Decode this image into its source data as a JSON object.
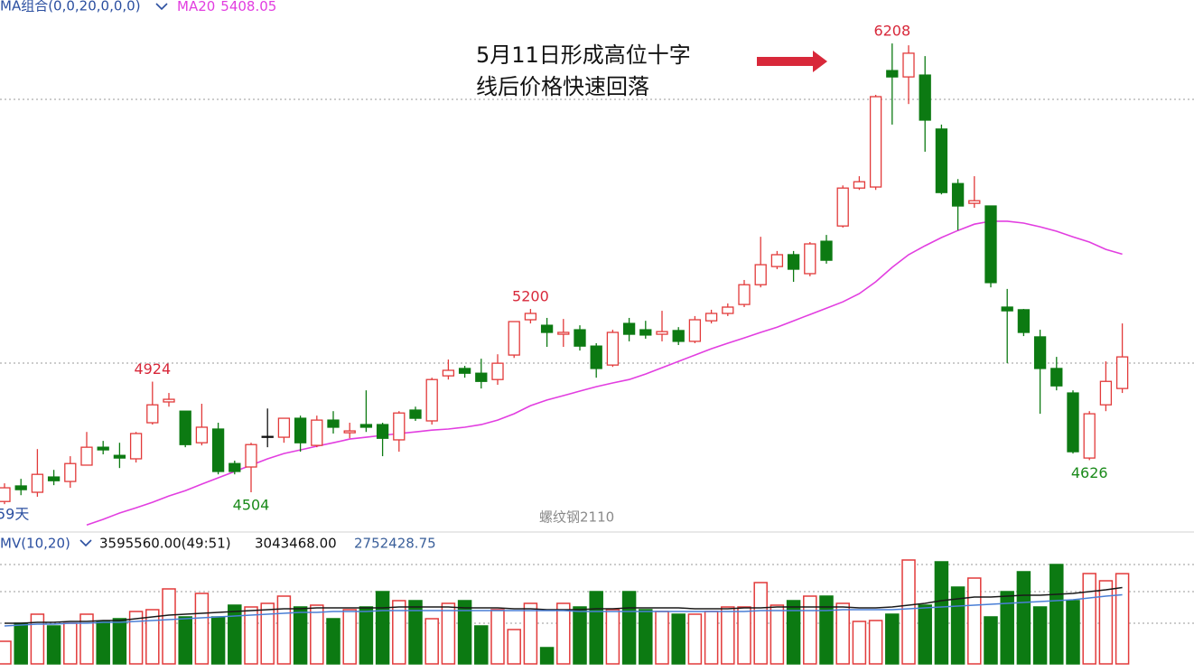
{
  "chart_data": {
    "type": "candlestick",
    "indicator_label": "MA组合(0,0,20,0,0,0)",
    "annotation": [
      "5月11日形成高位十字",
      "线后价格快速回落"
    ],
    "watermark": "螺纹钢2110",
    "period_label": "59天",
    "ylim": [
      4360,
      6373
    ],
    "up_color": "#e23a3a",
    "down_color": "#0c7a12",
    "doji_color": "#111111",
    "open": [
      4469,
      4528,
      4504,
      4562,
      4545,
      4607,
      4675,
      4644,
      4631,
      4768,
      4847,
      4812,
      4692,
      4744,
      4613,
      4600,
      4716,
      4713,
      4785,
      4682,
      4778,
      4730,
      4761,
      4761,
      4703,
      4816,
      4775,
      4946,
      4974,
      4956,
      4932,
      5025,
      5159,
      5138,
      5104,
      5121,
      5059,
      4987,
      5145,
      5121,
      5104,
      5118,
      5077,
      5155,
      5183,
      5217,
      5292,
      5361,
      5406,
      5334,
      5457,
      5515,
      5659,
      5663,
      6105,
      6081,
      6088,
      5883,
      5676,
      5601,
      5591,
      5207,
      5197,
      5094,
      4974,
      4881,
      4634,
      4836,
      4898
    ],
    "high": [
      4538,
      4555,
      4668,
      4589,
      4641,
      4733,
      4699,
      4692,
      4733,
      4924,
      4881,
      4812,
      4840,
      4768,
      4624,
      4692,
      4822,
      4785,
      4795,
      4795,
      4812,
      4768,
      4891,
      4768,
      4812,
      4829,
      4939,
      5008,
      4984,
      5011,
      5028,
      5152,
      5200,
      5166,
      5162,
      5138,
      5070,
      5121,
      5166,
      5155,
      5193,
      5131,
      5173,
      5197,
      5221,
      5310,
      5474,
      5420,
      5420,
      5454,
      5481,
      5669,
      5704,
      6013,
      6208,
      6201,
      6160,
      5900,
      5693,
      5704,
      5591,
      5276,
      5200,
      5121,
      5018,
      4891,
      4812,
      5001,
      5145
    ],
    "low": [
      4459,
      4493,
      4487,
      4531,
      4521,
      4607,
      4648,
      4596,
      4617,
      4761,
      4829,
      4675,
      4682,
      4572,
      4572,
      4504,
      4675,
      4692,
      4658,
      4675,
      4727,
      4709,
      4733,
      4641,
      4658,
      4775,
      4761,
      4932,
      4939,
      4898,
      4912,
      5014,
      5145,
      5056,
      5056,
      5042,
      4939,
      4980,
      5077,
      5087,
      5077,
      5063,
      5070,
      5145,
      5173,
      5207,
      5282,
      5351,
      5303,
      5324,
      5372,
      5509,
      5652,
      5652,
      5900,
      5978,
      5797,
      5635,
      5499,
      5584,
      5282,
      4994,
      5097,
      4802,
      4891,
      4651,
      4626,
      4812,
      4881
    ],
    "close": [
      4521,
      4514,
      4572,
      4548,
      4613,
      4675,
      4665,
      4634,
      4727,
      4836,
      4857,
      4685,
      4751,
      4583,
      4583,
      4685,
      4716,
      4785,
      4692,
      4778,
      4751,
      4737,
      4751,
      4709,
      4805,
      4785,
      4932,
      4967,
      4956,
      4925,
      4994,
      5152,
      5183,
      5111,
      5111,
      5059,
      4974,
      5111,
      5104,
      5101,
      5114,
      5077,
      5159,
      5183,
      5207,
      5292,
      5368,
      5406,
      5351,
      5447,
      5385,
      5659,
      5683,
      6006,
      6081,
      6171,
      5917,
      5642,
      5591,
      5611,
      5300,
      5193,
      5111,
      4974,
      4908,
      4658,
      4802,
      4925,
      5018
    ],
    "extreme_labels": [
      {
        "field": "high",
        "index": 9
      },
      {
        "field": "low",
        "index": 15
      },
      {
        "field": "high",
        "index": 32
      },
      {
        "field": "high",
        "index": 54
      },
      {
        "field": "low",
        "index": 66
      }
    ],
    "ma": {
      "name": "MA20",
      "color": "#e23ee0",
      "values": [
        null,
        null,
        null,
        null,
        null,
        4380,
        4401,
        4425,
        4445,
        4466,
        4490,
        4510,
        4535,
        4559,
        4583,
        4607,
        4631,
        4651,
        4665,
        4679,
        4692,
        4706,
        4713,
        4720,
        4727,
        4733,
        4740,
        4744,
        4751,
        4761,
        4778,
        4802,
        4833,
        4854,
        4871,
        4888,
        4905,
        4919,
        4932,
        4953,
        4977,
        5001,
        5025,
        5049,
        5070,
        5090,
        5111,
        5131,
        5155,
        5179,
        5203,
        5227,
        5258,
        5303,
        5358,
        5406,
        5440,
        5471,
        5498,
        5522,
        5533,
        5533,
        5526,
        5512,
        5495,
        5474,
        5454,
        5426,
        5408.05
      ]
    },
    "volume": {
      "label": "MV(10,20)",
      "ylim": [
        0,
        4860000
      ],
      "values": [
        900000,
        1620000,
        1980000,
        1512000,
        1620000,
        1980000,
        1692000,
        1800000,
        2088000,
        2160000,
        2988000,
        1872000,
        2808000,
        1872000,
        2340000,
        2268000,
        2412000,
        2700000,
        2268000,
        2340000,
        1800000,
        2160000,
        2268000,
        2880000,
        2520000,
        2520000,
        1800000,
        2412000,
        2520000,
        1512000,
        2160000,
        1368000,
        2412000,
        648000,
        2412000,
        2268000,
        2880000,
        2160000,
        2880000,
        2160000,
        2088000,
        1980000,
        1980000,
        2088000,
        2268000,
        2268000,
        3240000,
        2340000,
        2520000,
        2700000,
        2700000,
        2412000,
        1692000,
        1728000,
        1980000,
        4140000,
        2340000,
        4068000,
        3060000,
        3420000,
        1872000,
        2880000,
        3672000,
        2268000,
        3960000,
        2520000,
        3600000,
        3312000,
        3595560
      ],
      "last_label": "3595560.00(49:51)",
      "lines": [
        {
          "color": "#1a1a1a",
          "last_label": "3043468.00",
          "values": [
            1620000,
            1620000,
            1656000,
            1656000,
            1692000,
            1692000,
            1728000,
            1728000,
            1800000,
            1872000,
            1944000,
            1980000,
            2016000,
            2052000,
            2088000,
            2124000,
            2160000,
            2196000,
            2196000,
            2232000,
            2232000,
            2232000,
            2232000,
            2232000,
            2268000,
            2268000,
            2268000,
            2268000,
            2232000,
            2232000,
            2232000,
            2196000,
            2196000,
            2160000,
            2160000,
            2160000,
            2196000,
            2196000,
            2232000,
            2232000,
            2232000,
            2232000,
            2196000,
            2196000,
            2196000,
            2232000,
            2232000,
            2268000,
            2268000,
            2268000,
            2268000,
            2268000,
            2232000,
            2232000,
            2268000,
            2340000,
            2412000,
            2520000,
            2592000,
            2664000,
            2664000,
            2700000,
            2736000,
            2736000,
            2772000,
            2808000,
            2880000,
            2952000,
            3043468
          ]
        },
        {
          "color": "#4a7fd6",
          "last_label": "2752428.75",
          "values": [
            1512000,
            1548000,
            1584000,
            1584000,
            1620000,
            1620000,
            1656000,
            1656000,
            1692000,
            1728000,
            1764000,
            1800000,
            1836000,
            1872000,
            1908000,
            1944000,
            1980000,
            2016000,
            2052000,
            2052000,
            2088000,
            2088000,
            2088000,
            2124000,
            2124000,
            2124000,
            2124000,
            2124000,
            2124000,
            2124000,
            2124000,
            2124000,
            2124000,
            2124000,
            2124000,
            2088000,
            2088000,
            2088000,
            2088000,
            2088000,
            2088000,
            2088000,
            2088000,
            2088000,
            2088000,
            2088000,
            2124000,
            2124000,
            2124000,
            2124000,
            2124000,
            2160000,
            2160000,
            2160000,
            2160000,
            2196000,
            2232000,
            2268000,
            2304000,
            2340000,
            2376000,
            2412000,
            2448000,
            2484000,
            2520000,
            2556000,
            2628000,
            2700000,
            2752428.75
          ]
        }
      ]
    }
  }
}
